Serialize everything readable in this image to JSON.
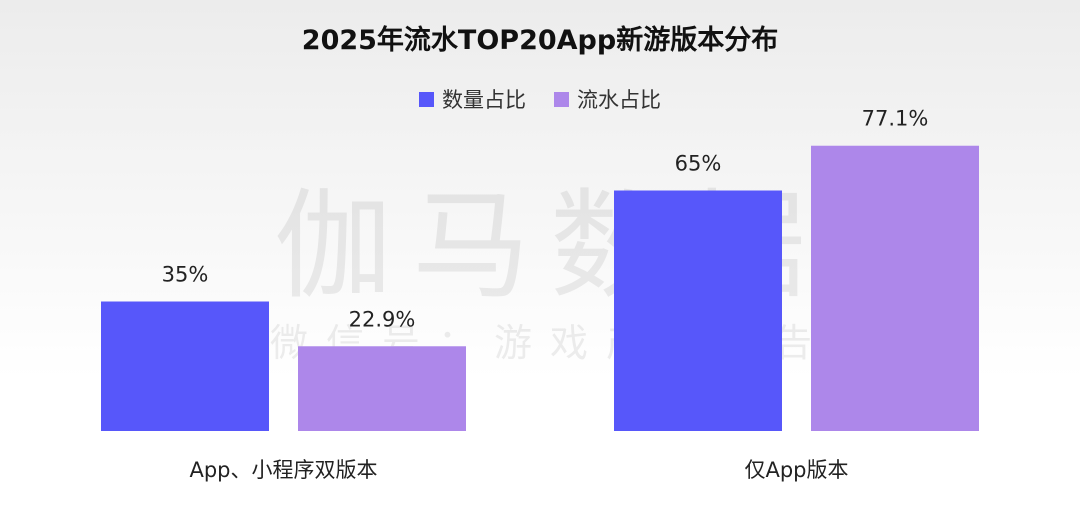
{
  "chart_data": {
    "type": "bar",
    "title": "2025年流水TOP20App新游版本分布",
    "categories": [
      "App、小程序双版本",
      "仅App版本"
    ],
    "series": [
      {
        "name": "数量占比",
        "values": [
          35,
          65
        ],
        "labels": [
          "35%",
          "65%"
        ],
        "color": "#5757FA"
      },
      {
        "name": "流水占比",
        "values": [
          22.9,
          77.1
        ],
        "labels": [
          "22.9%",
          "77.1%"
        ],
        "color": "#AD87EA"
      }
    ],
    "ylim": [
      0,
      100
    ],
    "unit": "%",
    "grid": false,
    "legend_position": "top-center",
    "xlabel": "",
    "ylabel": ""
  },
  "watermark": {
    "main": "伽马数据",
    "sub": "微信号：游戏产业报告"
  }
}
